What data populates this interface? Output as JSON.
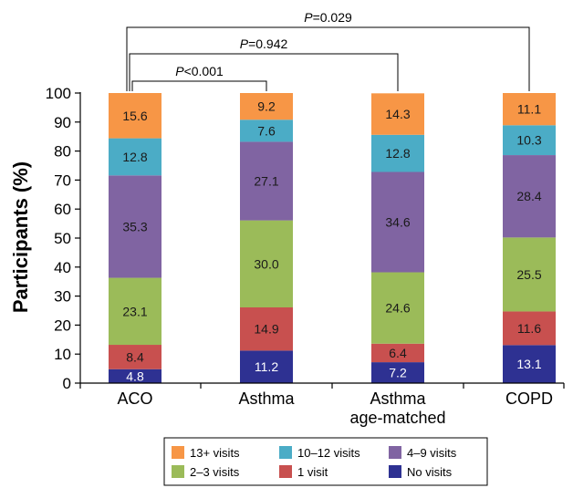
{
  "chart_data": {
    "type": "bar",
    "stacked": true,
    "ylabel": "Participants (%)",
    "ylim": [
      0,
      100
    ],
    "yticks": [
      "0",
      "10",
      "20",
      "30",
      "40",
      "50",
      "60",
      "70",
      "80",
      "90",
      "100"
    ],
    "categories": [
      [
        "ACO"
      ],
      [
        "Asthma"
      ],
      [
        "Asthma",
        "age-matched"
      ],
      [
        "COPD"
      ]
    ],
    "series": [
      {
        "name": "No visits",
        "color": "#2e3192",
        "values": [
          4.8,
          11.2,
          7.2,
          13.1
        ],
        "labels": [
          "4.8",
          "11.2",
          "7.2",
          "13.1"
        ]
      },
      {
        "name": "1 visit",
        "color": "#c8504f",
        "values": [
          8.4,
          14.9,
          6.4,
          11.6
        ],
        "labels": [
          "8.4",
          "14.9",
          "6.4",
          "11.6"
        ]
      },
      {
        "name": "2–3 visits",
        "color": "#9bbb59",
        "values": [
          23.1,
          30.0,
          24.6,
          25.5
        ],
        "labels": [
          "23.1",
          "30.0",
          "24.6",
          "25.5"
        ]
      },
      {
        "name": "4–9 visits",
        "color": "#8064a2",
        "values": [
          35.3,
          27.1,
          34.6,
          28.4
        ],
        "labels": [
          "35.3",
          "27.1",
          "34.6",
          "28.4"
        ]
      },
      {
        "name": "10–12 visits",
        "color": "#4bacc6",
        "values": [
          12.8,
          7.6,
          12.8,
          10.3
        ],
        "labels": [
          "12.8",
          "7.6",
          "12.8",
          "10.3"
        ]
      },
      {
        "name": "13+ visits",
        "color": "#f79646",
        "values": [
          15.6,
          9.2,
          14.3,
          11.1
        ],
        "labels": [
          "15.6",
          "9.2",
          "14.3",
          "11.1"
        ]
      }
    ],
    "comparisons": [
      {
        "from": 0,
        "to": 1,
        "italic": "P",
        "text": "<0.001"
      },
      {
        "from": 0,
        "to": 2,
        "italic": "P",
        "text": "=0.942"
      },
      {
        "from": 0,
        "to": 3,
        "italic": "P",
        "text": "=0.029"
      }
    ],
    "legend": {
      "placement": "bottom",
      "order": [
        "13+ visits",
        "10–12 visits",
        "4–9 visits",
        "2–3 visits",
        "1 visit",
        "No visits"
      ]
    },
    "grid": false
  }
}
